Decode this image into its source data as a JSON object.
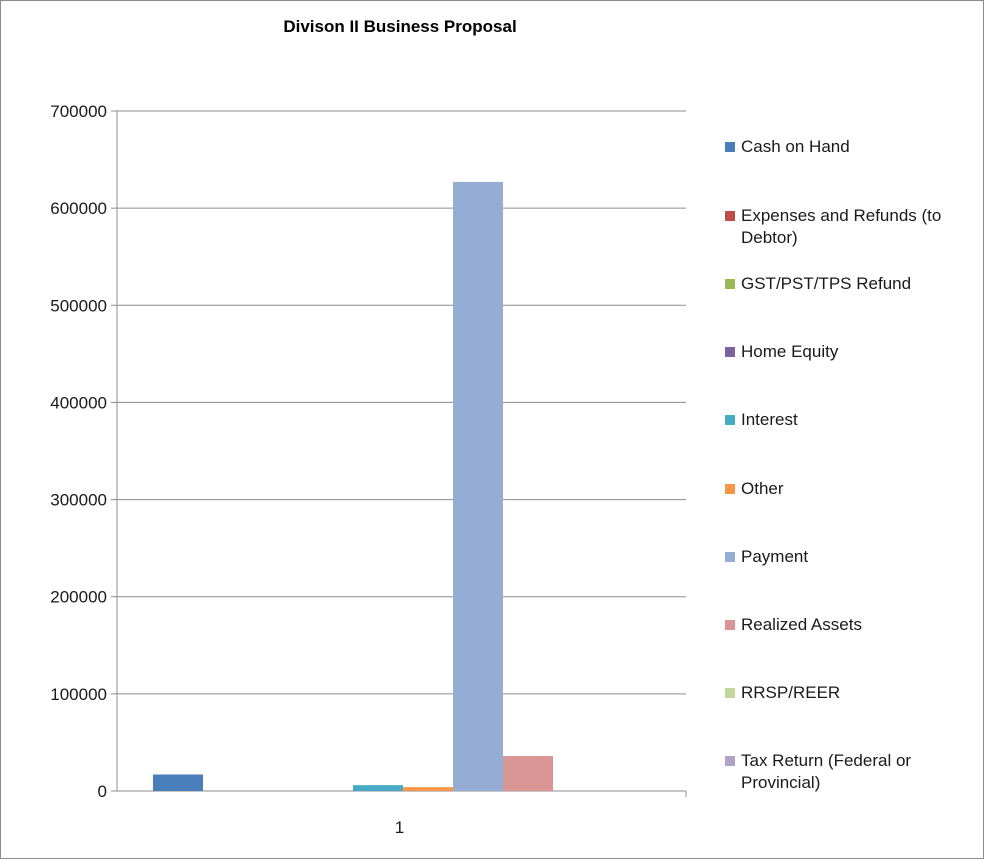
{
  "chart_data": {
    "type": "bar",
    "title": "Divison II Business Proposal",
    "categories": [
      "1"
    ],
    "ylim": [
      0,
      700000
    ],
    "yticks": [
      0,
      100000,
      200000,
      300000,
      400000,
      500000,
      600000,
      700000
    ],
    "ytick_labels": [
      "0",
      "100000",
      "200000",
      "300000",
      "400000",
      "500000",
      "600000",
      "700000"
    ],
    "grid": true,
    "legend_position": "right",
    "series": [
      {
        "name": "Cash on Hand",
        "values": [
          17000
        ],
        "color": "#4a7ebb"
      },
      {
        "name": "Expenses and Refunds (to Debtor)",
        "values": [
          0
        ],
        "color": "#be4b48"
      },
      {
        "name": "GST/PST/TPS Refund",
        "values": [
          0
        ],
        "color": "#98b954"
      },
      {
        "name": "Home Equity",
        "values": [
          0
        ],
        "color": "#7d60a0"
      },
      {
        "name": "Interest",
        "values": [
          6000
        ],
        "color": "#46aac5"
      },
      {
        "name": "Other",
        "values": [
          4000
        ],
        "color": "#f79646"
      },
      {
        "name": "Payment",
        "values": [
          627000
        ],
        "color": "#95acd4"
      },
      {
        "name": "Realized Assets",
        "values": [
          36000
        ],
        "color": "#d99694"
      },
      {
        "name": "RRSP/REER",
        "values": [
          0
        ],
        "color": "#c3d69b"
      },
      {
        "name": "Tax Return (Federal or Provincial)",
        "values": [
          0
        ],
        "color": "#b3a2c7"
      }
    ]
  }
}
